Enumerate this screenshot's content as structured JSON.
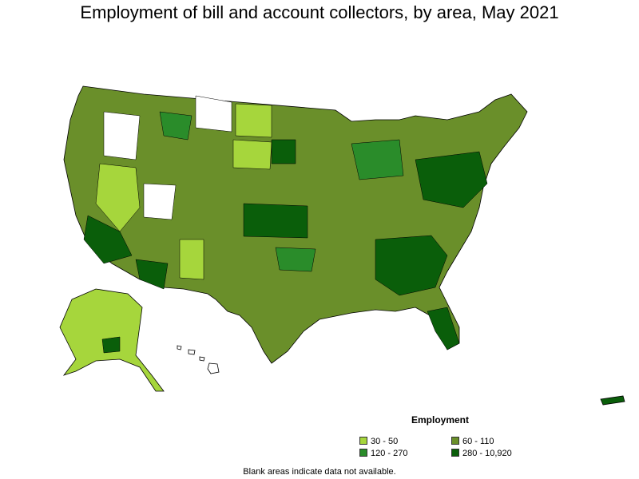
{
  "title": "Employment of bill and account collectors, by area, May 2021",
  "legend": {
    "title": "Employment",
    "items": [
      {
        "label": "30 - 50",
        "color": "#a6d63c"
      },
      {
        "label": "60 - 110",
        "color": "#6a8f2a"
      },
      {
        "label": "120 - 270",
        "color": "#2a8c2a"
      },
      {
        "label": "280 - 10,920",
        "color": "#0a5e0a"
      }
    ]
  },
  "footnote": "Blank areas indicate data not available."
}
